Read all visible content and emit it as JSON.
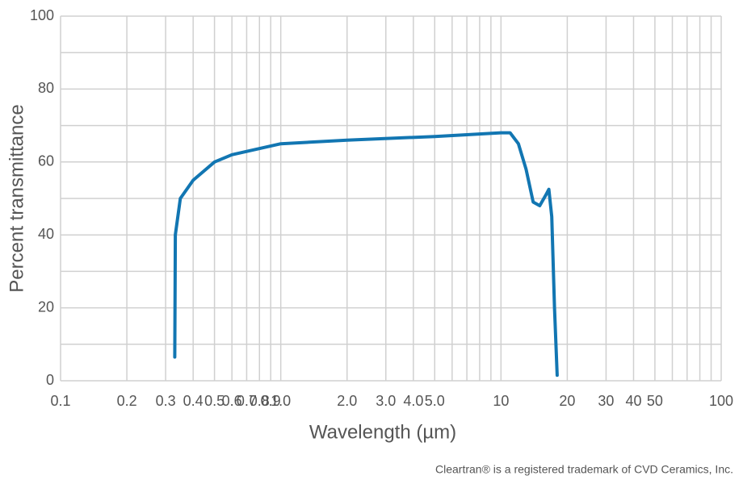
{
  "chart_data": {
    "type": "line",
    "x_label": "Wavelength (µm)",
    "y_label": "Percent transmittance",
    "footnote": "Cleartran® is a registered trademark of CVD Ceramics, Inc.",
    "log_x": true,
    "grid": true,
    "xlim": [
      0.1,
      100
    ],
    "ylim": [
      0,
      100
    ],
    "xticks": [
      0.1,
      0.2,
      0.3,
      0.4,
      0.5,
      0.6,
      0.7,
      0.8,
      0.9,
      {
        "value": 1,
        "label": "1.0"
      },
      {
        "value": 2,
        "label": "2.0"
      },
      {
        "value": 3,
        "label": "3.0"
      },
      {
        "value": 4,
        "label": "4.0"
      },
      {
        "value": 5,
        "label": "5.0"
      },
      10,
      20,
      30,
      40,
      50,
      100
    ],
    "x_minor_grid": [
      6,
      7,
      8,
      9,
      60,
      70,
      80,
      90
    ],
    "yticks": [
      0,
      20,
      40,
      60,
      80,
      100
    ],
    "y_minor_grid": [
      10,
      30,
      50,
      70,
      90
    ],
    "series": [
      {
        "color": "#1276b2",
        "x": [
          0.33,
          0.332,
          0.35,
          0.4,
          0.5,
          0.6,
          1,
          2,
          5,
          10,
          11,
          12,
          13,
          14,
          15,
          16,
          16.5,
          17,
          17.5,
          18
        ],
        "values": [
          6.5,
          40,
          50,
          55,
          60,
          62,
          65,
          66,
          67,
          68,
          68,
          65,
          58,
          49,
          48,
          51,
          52.5,
          45,
          20,
          1.5
        ]
      }
    ]
  }
}
